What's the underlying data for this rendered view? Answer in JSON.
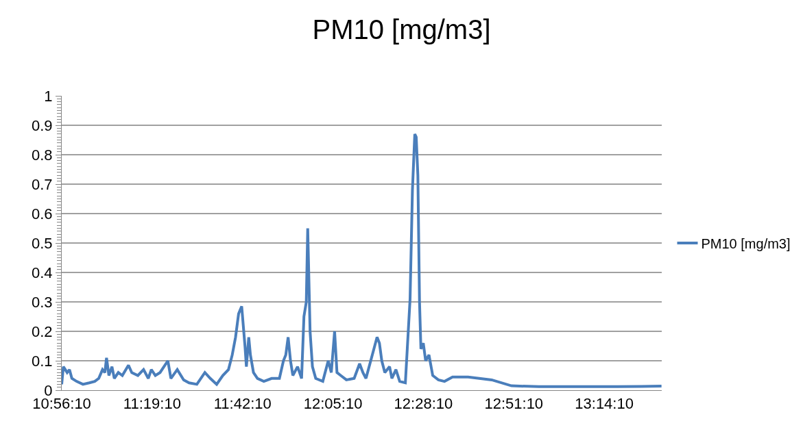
{
  "chart_data": {
    "type": "line",
    "title": "PM10 [mg/m3]",
    "x": [
      10.936,
      10.943,
      10.959,
      10.969,
      10.979,
      10.999,
      11.026,
      11.053,
      11.076,
      11.093,
      11.109,
      11.119,
      11.126,
      11.136,
      11.149,
      11.159,
      11.176,
      11.193,
      11.219,
      11.233,
      11.259,
      11.283,
      11.303,
      11.316,
      11.333,
      11.353,
      11.386,
      11.399,
      11.426,
      11.453,
      11.476,
      11.509,
      11.543,
      11.566,
      11.593,
      11.619,
      11.643,
      11.659,
      11.673,
      11.686,
      11.699,
      11.713,
      11.719,
      11.729,
      11.736,
      11.749,
      11.766,
      11.793,
      11.826,
      11.859,
      11.876,
      11.886,
      11.896,
      11.906,
      11.916,
      11.936,
      11.953,
      11.963,
      11.973,
      11.979,
      11.989,
      11.999,
      12.013,
      12.043,
      12.066,
      12.079,
      12.093,
      12.103,
      12.119,
      12.143,
      12.176,
      12.199,
      12.213,
      12.226,
      12.273,
      12.283,
      12.293,
      12.306,
      12.326,
      12.336,
      12.353,
      12.369,
      12.393,
      12.413,
      12.423,
      12.433,
      12.439,
      12.446,
      12.453,
      12.459,
      12.469,
      12.479,
      12.493,
      12.509,
      12.533,
      12.559,
      12.593,
      12.659,
      12.759,
      12.843,
      12.959,
      13.126,
      13.293,
      13.393,
      13.479
    ],
    "series": [
      {
        "name": "PM10 [mg/m3]",
        "color": "#4a7ebb",
        "values": [
          0.02,
          0.08,
          0.06,
          0.07,
          0.04,
          0.03,
          0.02,
          0.025,
          0.03,
          0.04,
          0.07,
          0.06,
          0.11,
          0.05,
          0.08,
          0.04,
          0.06,
          0.05,
          0.085,
          0.06,
          0.05,
          0.07,
          0.04,
          0.07,
          0.05,
          0.06,
          0.1,
          0.04,
          0.07,
          0.035,
          0.025,
          0.02,
          0.06,
          0.04,
          0.02,
          0.05,
          0.07,
          0.12,
          0.18,
          0.26,
          0.285,
          0.15,
          0.08,
          0.18,
          0.12,
          0.06,
          0.04,
          0.03,
          0.04,
          0.04,
          0.1,
          0.12,
          0.18,
          0.1,
          0.05,
          0.08,
          0.04,
          0.25,
          0.3,
          0.55,
          0.2,
          0.08,
          0.04,
          0.03,
          0.1,
          0.06,
          0.2,
          0.06,
          0.05,
          0.035,
          0.04,
          0.09,
          0.06,
          0.04,
          0.18,
          0.16,
          0.1,
          0.06,
          0.08,
          0.04,
          0.07,
          0.03,
          0.025,
          0.31,
          0.68,
          0.87,
          0.86,
          0.73,
          0.3,
          0.14,
          0.16,
          0.1,
          0.12,
          0.05,
          0.035,
          0.03,
          0.045,
          0.045,
          0.035,
          0.015,
          0.012,
          0.012,
          0.012,
          0.013,
          0.014
        ]
      }
    ],
    "xlim": [
      10.936,
      13.48
    ],
    "xticks": [
      {
        "value": 10.9361,
        "label": "10:56:10"
      },
      {
        "value": 11.3194,
        "label": "11:19:10"
      },
      {
        "value": 11.7028,
        "label": "11:42:10"
      },
      {
        "value": 12.0861,
        "label": "12:05:10"
      },
      {
        "value": 12.4694,
        "label": "12:28:10"
      },
      {
        "value": 12.8528,
        "label": "12:51:10"
      },
      {
        "value": 13.2361,
        "label": "13:14:10"
      }
    ],
    "ylim": [
      0,
      1
    ],
    "yticks": [
      0,
      0.1,
      0.2,
      0.3,
      0.4,
      0.5,
      0.6,
      0.7,
      0.8,
      0.9,
      1
    ],
    "grid": "y",
    "legend": "right",
    "line_style": "solid",
    "marker": "none"
  }
}
